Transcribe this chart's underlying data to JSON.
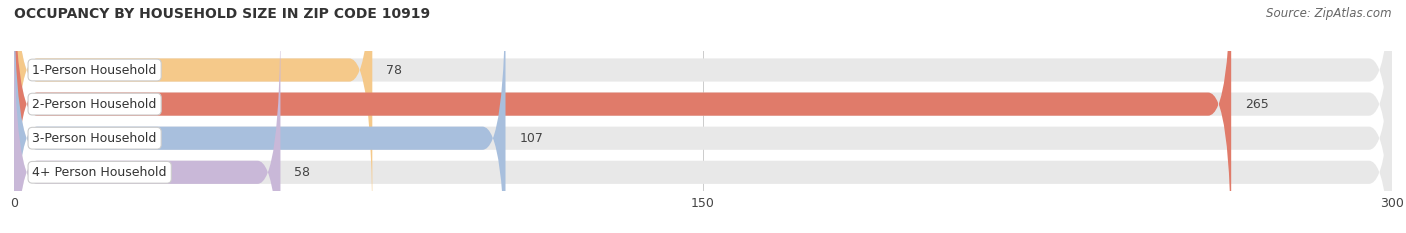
{
  "title": "OCCUPANCY BY HOUSEHOLD SIZE IN ZIP CODE 10919",
  "source": "Source: ZipAtlas.com",
  "categories": [
    "1-Person Household",
    "2-Person Household",
    "3-Person Household",
    "4+ Person Household"
  ],
  "values": [
    78,
    265,
    107,
    58
  ],
  "bar_colors": [
    "#f5c98a",
    "#e07b6a",
    "#a8bfdd",
    "#c9b8d8"
  ],
  "bg_color": "#f0f0f0",
  "label_box_color": "#ffffff",
  "label_edge_color": "#cccccc",
  "xlim": [
    0,
    300
  ],
  "xticks": [
    0,
    150,
    300
  ],
  "figsize": [
    14.06,
    2.33
  ],
  "dpi": 100,
  "title_fontsize": 10,
  "label_fontsize": 9,
  "value_fontsize": 9,
  "tick_fontsize": 9,
  "source_fontsize": 8.5
}
